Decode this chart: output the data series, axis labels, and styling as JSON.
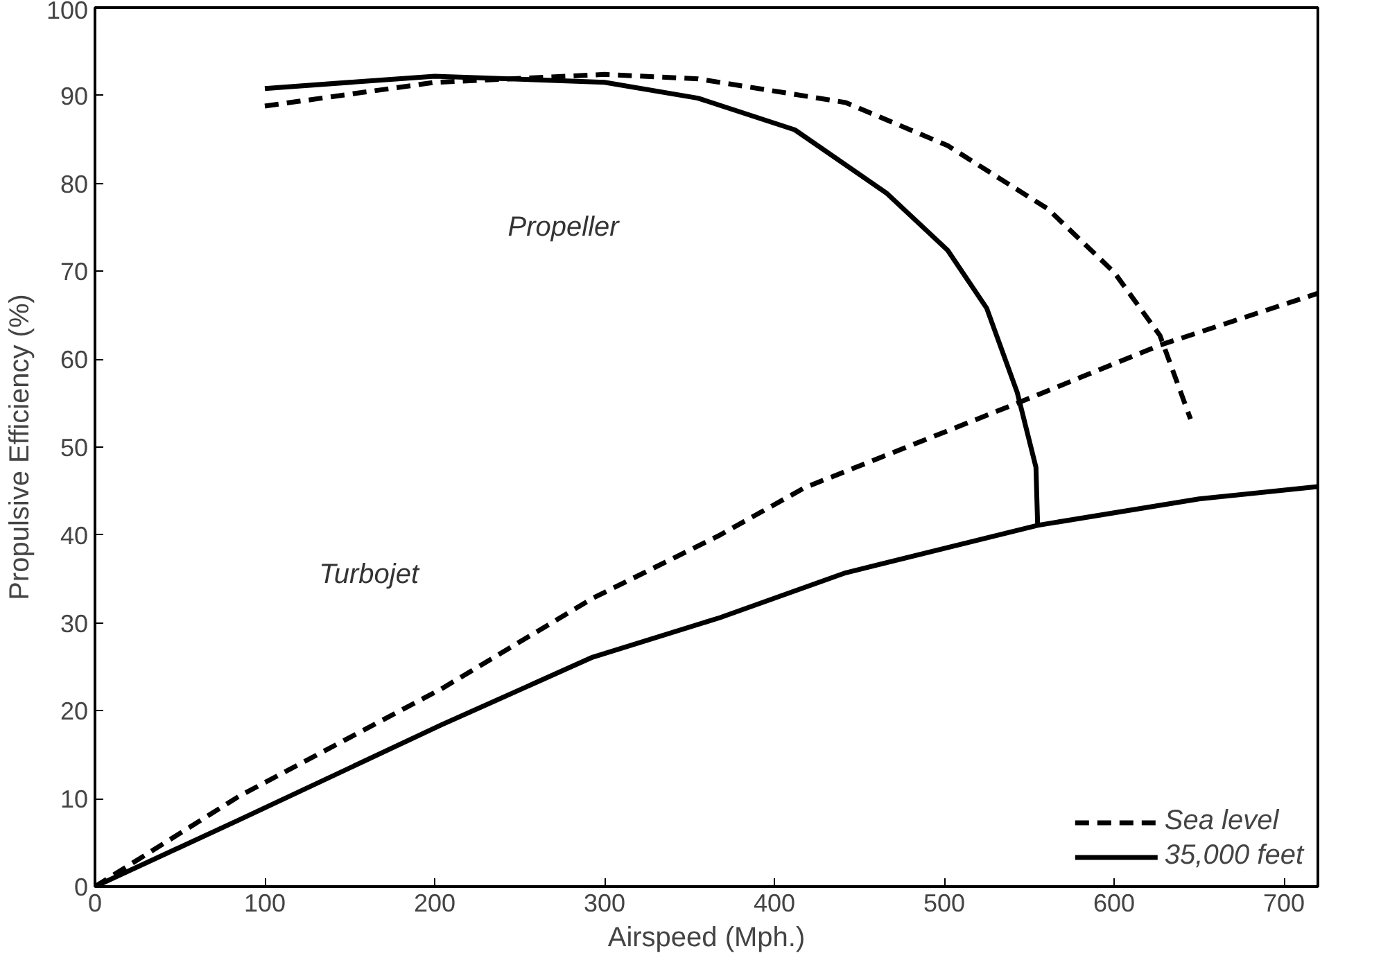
{
  "chart_data": {
    "type": "line",
    "xlabel": "Airspeed (Mph.)",
    "ylabel": "Propulsive Efficiency (%)",
    "xlim": [
      0,
      720
    ],
    "ylim": [
      0,
      100
    ],
    "xticks": [
      0,
      100,
      200,
      300,
      400,
      500,
      600,
      700
    ],
    "yticks": [
      0,
      10,
      20,
      30,
      40,
      50,
      60,
      70,
      80,
      90,
      100
    ],
    "grid": false,
    "legend": "bottom right",
    "marker": "none",
    "annotations": [
      "Propeller",
      "Turbojet"
    ],
    "series": [
      {
        "name": "Sea level",
        "color": "#000000",
        "line_style": "dashed",
        "x": [
          100,
          200,
          300,
          355,
          442,
          502,
          561,
          600,
          627,
          645
        ],
        "values": [
          88.8,
          91.5,
          92.4,
          91.9,
          89.2,
          84.3,
          77.1,
          69.9,
          62.7,
          53.2
        ]
      },
      {
        "name": "35,000 feet",
        "color": "#000000",
        "line_style": "solid",
        "x": [
          100,
          200,
          300,
          355,
          412,
          466,
          502,
          525,
          543,
          554,
          555
        ],
        "values": [
          90.8,
          92.2,
          91.5,
          89.7,
          86.1,
          78.9,
          72.4,
          65.8,
          56.2,
          47.7,
          41.1
        ]
      },
      {
        "color": "#000000",
        "line_style": "dashed",
        "x": [
          0,
          85,
          204,
          293,
          368,
          418,
          543,
          627,
          720
        ],
        "values": [
          0,
          10.3,
          22.5,
          32.8,
          40,
          45.4,
          55,
          61.6,
          67.5
        ]
      },
      {
        "color": "#000000",
        "line_style": "solid",
        "x": [
          0,
          85,
          204,
          293,
          368,
          442,
          555,
          650,
          720
        ],
        "values": [
          0,
          7.6,
          18.4,
          26.1,
          30.6,
          35.7,
          41.1,
          44.1,
          45.5
        ]
      }
    ]
  }
}
